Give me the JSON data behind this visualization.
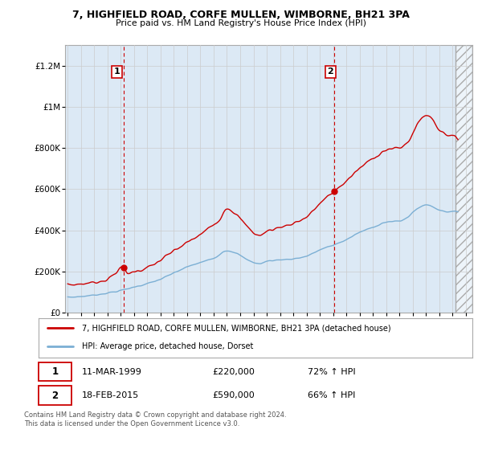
{
  "title": "7, HIGHFIELD ROAD, CORFE MULLEN, WIMBORNE, BH21 3PA",
  "subtitle": "Price paid vs. HM Land Registry's House Price Index (HPI)",
  "ylabel_ticks": [
    "£0",
    "£200K",
    "£400K",
    "£600K",
    "£800K",
    "£1M",
    "£1.2M"
  ],
  "ytick_values": [
    0,
    200000,
    400000,
    600000,
    800000,
    1000000,
    1200000
  ],
  "ylim": [
    0,
    1300000
  ],
  "xlim_start": 1994.8,
  "xlim_end": 2025.5,
  "future_start": 2024.2,
  "red_line_color": "#cc0000",
  "blue_line_color": "#7bafd4",
  "vline_color": "#cc0000",
  "grid_color": "#cccccc",
  "background_color": "#ffffff",
  "plot_background": "#dce9f5",
  "purchase1_year": 1999.2,
  "purchase1_price": 220000,
  "purchase1_label": "1",
  "purchase1_date": "11-MAR-1999",
  "purchase1_hpi": "72% ↑ HPI",
  "purchase2_year": 2015.1,
  "purchase2_price": 590000,
  "purchase2_label": "2",
  "purchase2_date": "18-FEB-2015",
  "purchase2_hpi": "66% ↑ HPI",
  "legend_line1": "7, HIGHFIELD ROAD, CORFE MULLEN, WIMBORNE, BH21 3PA (detached house)",
  "legend_line2": "HPI: Average price, detached house, Dorset",
  "footnote": "Contains HM Land Registry data © Crown copyright and database right 2024.\nThis data is licensed under the Open Government Licence v3.0.",
  "xticks": [
    1995,
    1996,
    1997,
    1998,
    1999,
    2000,
    2001,
    2002,
    2003,
    2004,
    2005,
    2006,
    2007,
    2008,
    2009,
    2010,
    2011,
    2012,
    2013,
    2014,
    2015,
    2016,
    2017,
    2018,
    2019,
    2020,
    2021,
    2022,
    2023,
    2024,
    2025
  ]
}
